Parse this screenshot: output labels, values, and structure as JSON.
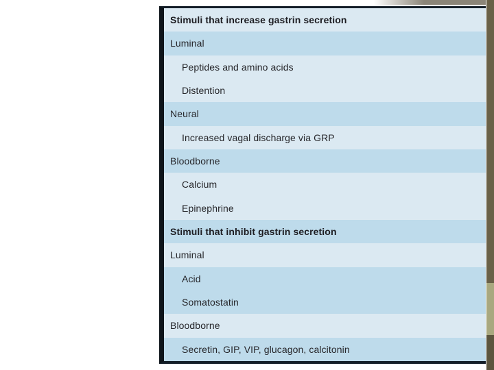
{
  "table": {
    "rows": [
      {
        "label": "Stimuli that increase gastrin secretion",
        "type": "section-header",
        "band": "light"
      },
      {
        "label": "Luminal",
        "type": "category",
        "band": "medium"
      },
      {
        "label": "Peptides and amino acids",
        "type": "item",
        "band": "light"
      },
      {
        "label": "Distention",
        "type": "item",
        "band": "light"
      },
      {
        "label": "Neural",
        "type": "category",
        "band": "medium"
      },
      {
        "label": "Increased vagal discharge via GRP",
        "type": "item",
        "band": "light"
      },
      {
        "label": "Bloodborne",
        "type": "category",
        "band": "medium"
      },
      {
        "label": "Calcium",
        "type": "item",
        "band": "light"
      },
      {
        "label": "Epinephrine",
        "type": "item",
        "band": "light"
      },
      {
        "label": "Stimuli that inhibit gastrin secretion",
        "type": "section-header",
        "band": "medium"
      },
      {
        "label": "Luminal",
        "type": "category",
        "band": "light"
      },
      {
        "label": "Acid",
        "type": "item",
        "band": "medium"
      },
      {
        "label": "Somatostatin",
        "type": "item",
        "band": "medium"
      },
      {
        "label": "Bloodborne",
        "type": "category",
        "band": "light"
      },
      {
        "label": "Secretin, GIP, VIP, glucagon, calcitonin",
        "type": "item",
        "band": "medium"
      }
    ]
  },
  "colors": {
    "band_light": "#dbe9f2",
    "band_medium": "#bedbeb",
    "table_rule": "#141e28",
    "left_bar": "#0e141a",
    "text": "#26262a",
    "page_edge_olive_top": "#6a6148",
    "page_edge_khaki": "#a9a87f",
    "page_edge_olive_bottom": "#5c553e",
    "top_shadow_gray": "#8b8578"
  }
}
